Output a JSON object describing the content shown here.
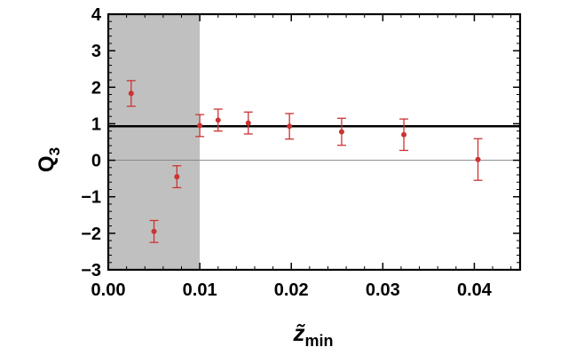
{
  "chart_data": {
    "type": "scatter",
    "title": "",
    "xlabel_main": "z̃",
    "xlabel_sub": "min",
    "ylabel_main": "Q",
    "ylabel_sub": "3",
    "xlim": [
      0,
      0.045
    ],
    "ylim": [
      -3,
      4
    ],
    "x_ticks": [
      0,
      0.01,
      0.02,
      0.03,
      0.04
    ],
    "x_tick_labels": [
      "0.00",
      "0.01",
      "0.02",
      "0.03",
      "0.04"
    ],
    "y_ticks": [
      -3,
      -2,
      -1,
      0,
      1,
      2,
      3,
      4
    ],
    "y_tick_labels": [
      "−3",
      "−2",
      "−1",
      "0",
      "1",
      "2",
      "3",
      "4"
    ],
    "excluded_region": {
      "x_from": 0,
      "x_to": 0.01,
      "color": "#c0c0c0"
    },
    "reference_line": {
      "y": 0.93,
      "color": "#000000"
    },
    "zero_line": {
      "y": 0,
      "color": "#808080"
    },
    "points_color": "#cc3333",
    "points": [
      {
        "x": 0.0025,
        "y": 1.83,
        "err": 0.35
      },
      {
        "x": 0.005,
        "y": -1.95,
        "err": 0.3
      },
      {
        "x": 0.0075,
        "y": -0.45,
        "err": 0.3
      },
      {
        "x": 0.01,
        "y": 0.95,
        "err": 0.3
      },
      {
        "x": 0.012,
        "y": 1.1,
        "err": 0.3
      },
      {
        "x": 0.0153,
        "y": 1.02,
        "err": 0.3
      },
      {
        "x": 0.0198,
        "y": 0.93,
        "err": 0.35
      },
      {
        "x": 0.0255,
        "y": 0.78,
        "err": 0.37
      },
      {
        "x": 0.0323,
        "y": 0.7,
        "err": 0.43
      },
      {
        "x": 0.0404,
        "y": 0.02,
        "err": 0.57
      }
    ]
  }
}
